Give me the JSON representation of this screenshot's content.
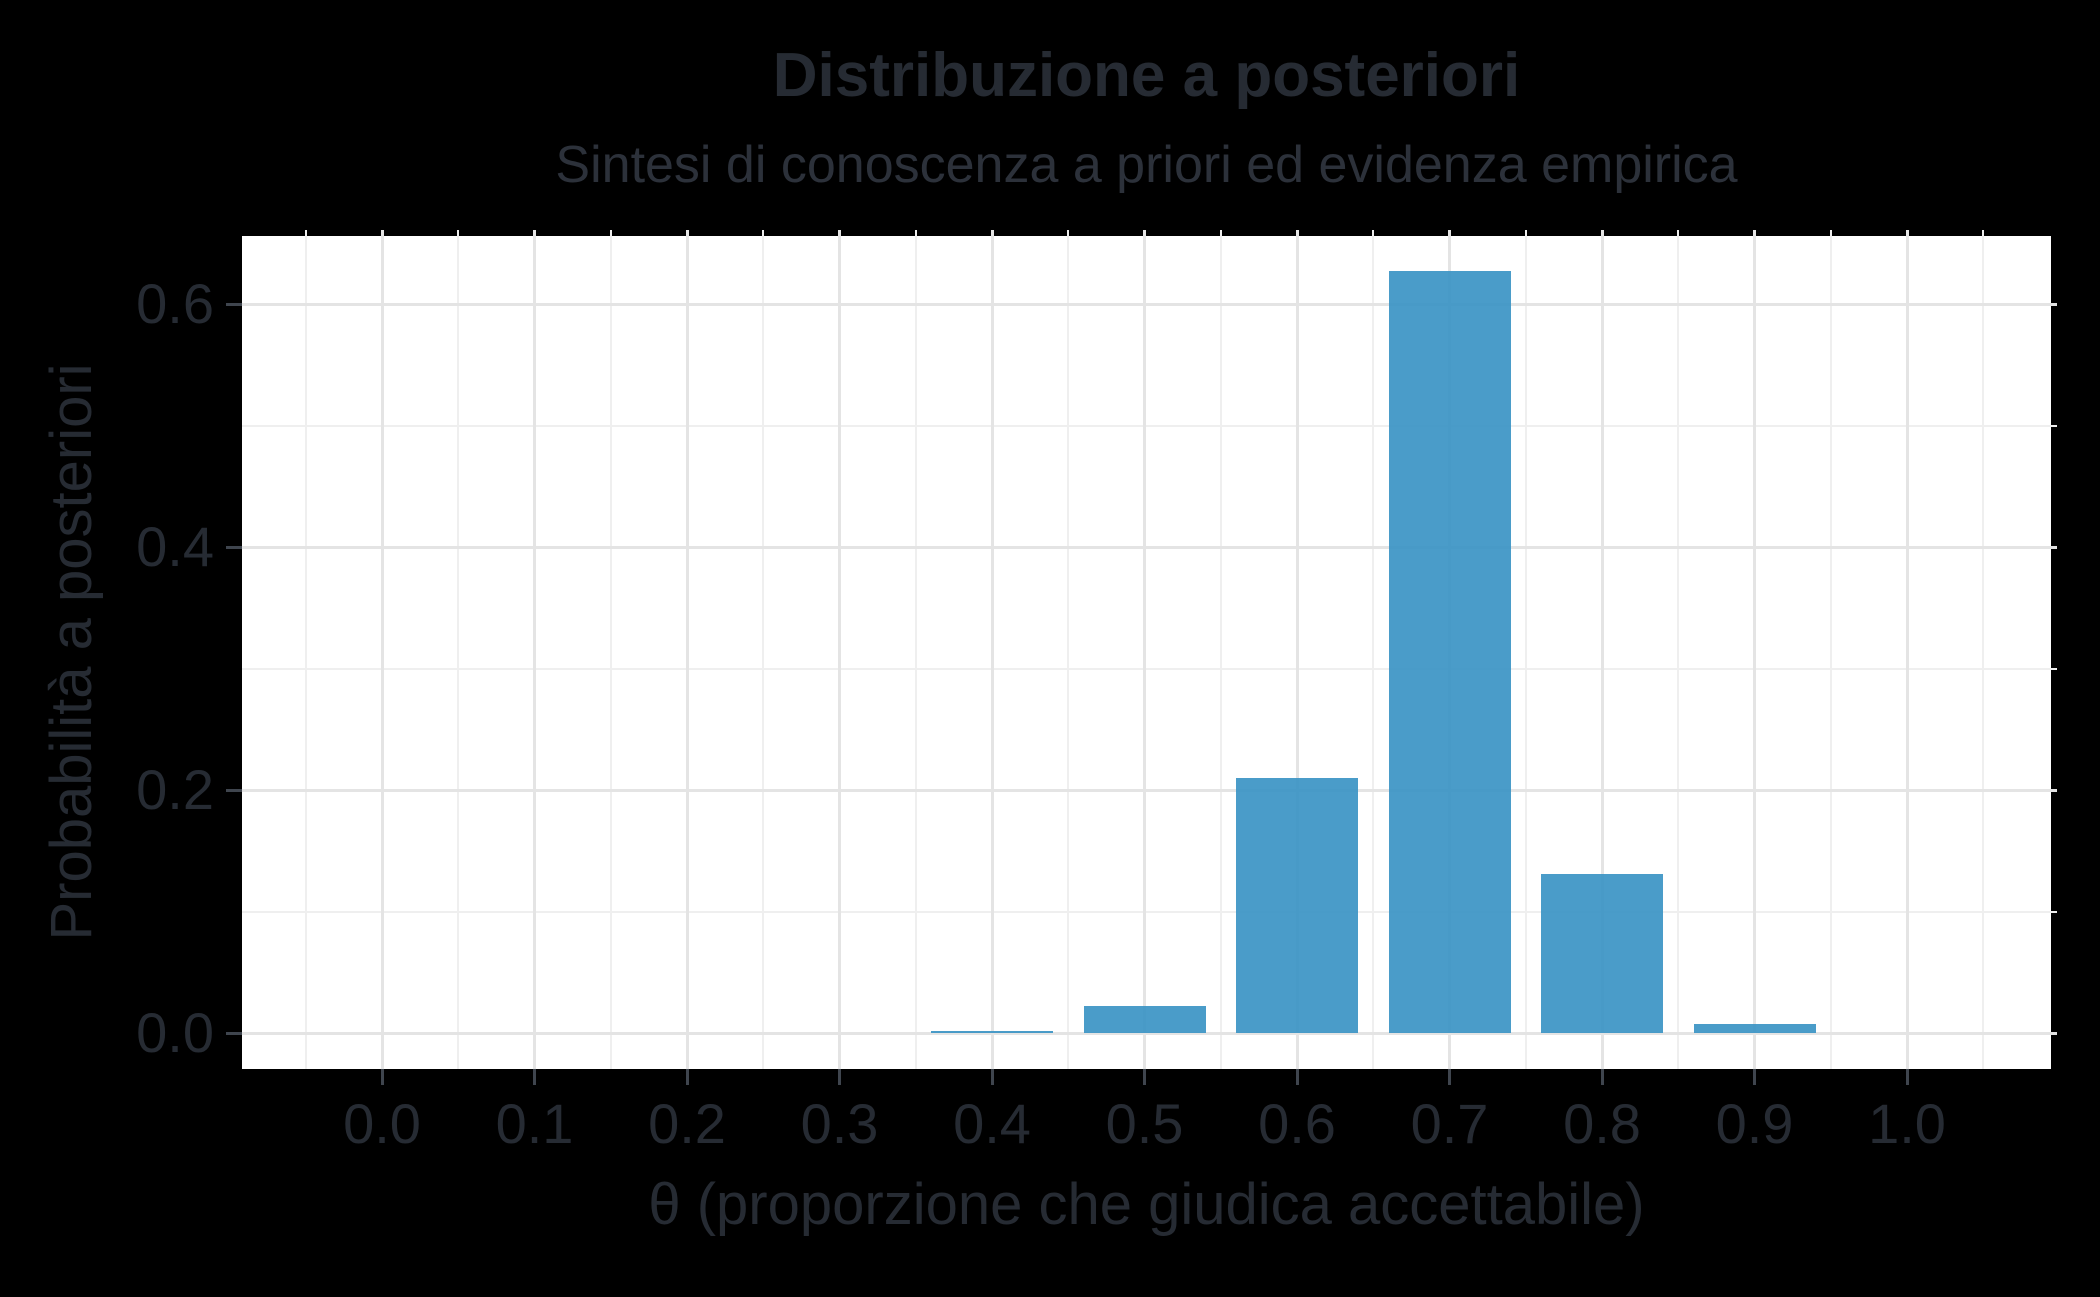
{
  "chart_data": {
    "type": "bar",
    "title": "Distribuzione a posteriori",
    "subtitle": "Sintesi di conoscenza a priori ed evidenza empirica",
    "xlabel": "θ (proporzione che giudica accettabile)",
    "ylabel": "Probabilità a posteriori",
    "x": [
      0.0,
      0.1,
      0.2,
      0.3,
      0.4,
      0.5,
      0.6,
      0.7,
      0.8,
      0.9,
      1.0
    ],
    "values": [
      0,
      0,
      0,
      0,
      0.002,
      0.022,
      0.21,
      0.627,
      0.131,
      0.007,
      0
    ],
    "x_ticks": [
      "0.0",
      "0.1",
      "0.2",
      "0.3",
      "0.4",
      "0.5",
      "0.6",
      "0.7",
      "0.8",
      "0.9",
      "1.0"
    ],
    "y_ticks": [
      "0.0",
      "0.2",
      "0.4",
      "0.6"
    ],
    "y_tick_values": [
      0,
      0.2,
      0.4,
      0.6
    ],
    "x_minor": [
      -0.05,
      0.05,
      0.15,
      0.25,
      0.35,
      0.45,
      0.55,
      0.65,
      0.75,
      0.85,
      0.95,
      1.05
    ],
    "y_minor": [
      0.1,
      0.3,
      0.5
    ],
    "xlim": [
      -0.092,
      1.094
    ],
    "ylim": [
      -0.03,
      0.656
    ],
    "bar_width": 0.08,
    "bar_color": "#3691c3",
    "bar_alpha": 0.9,
    "grid": true,
    "grid_major_color": "#e4e4e4",
    "grid_minor_color": "#efefef",
    "tick_color": "#3f454e",
    "text_color": "#262b33",
    "panel_background": "#ffffff",
    "outer_background": "#000000",
    "legend_position": "none"
  }
}
